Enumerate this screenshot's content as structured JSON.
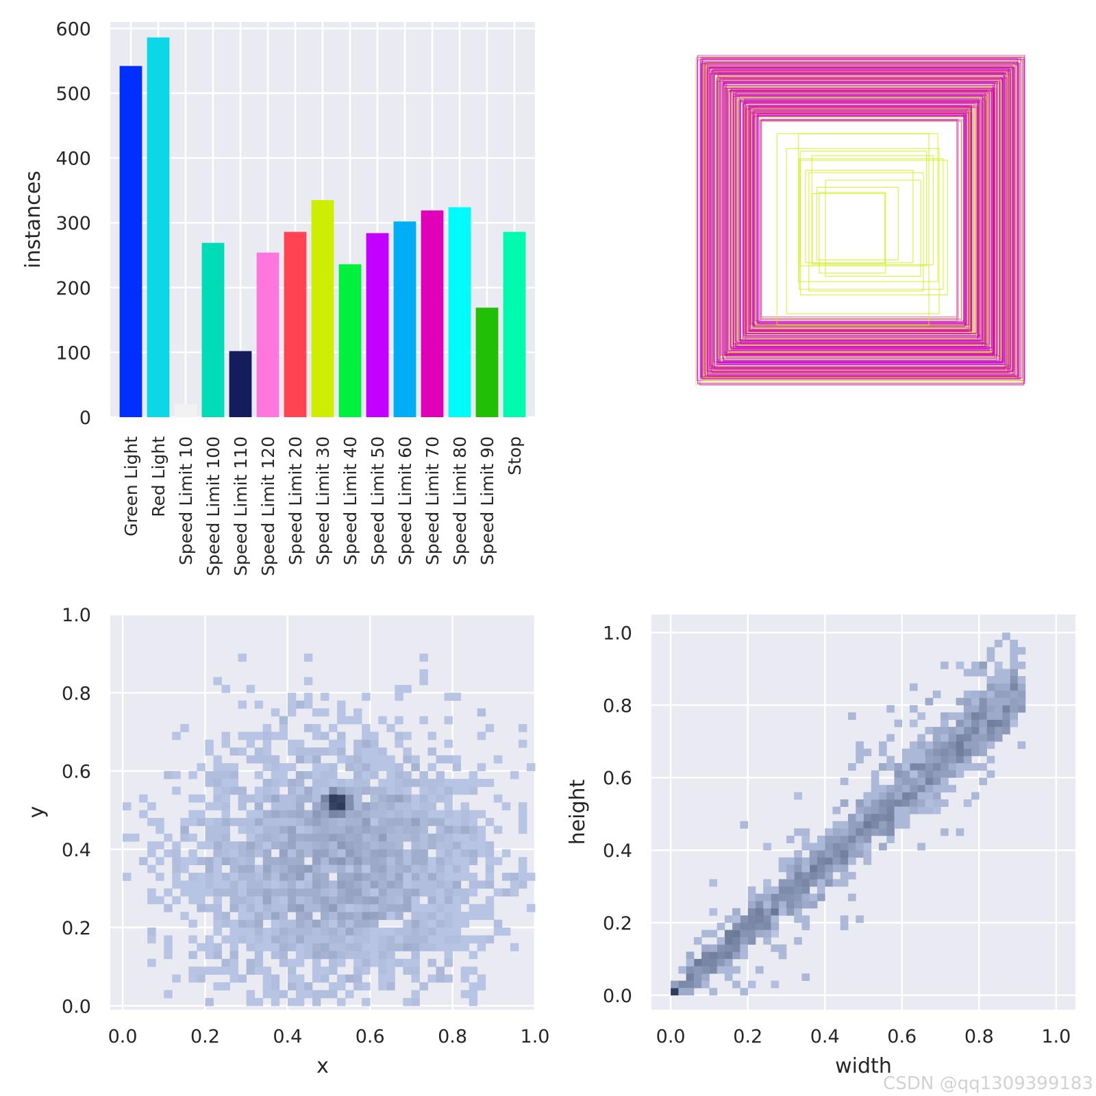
{
  "watermark": "CSDN @qq1309399183",
  "chart_data": [
    {
      "type": "bar",
      "categories": [
        "Green Light",
        "Red Light",
        "Speed Limit 10",
        "Speed Limit 100",
        "Speed Limit 110",
        "Speed Limit 120",
        "Speed Limit 20",
        "Speed Limit 30",
        "Speed Limit 40",
        "Speed Limit 50",
        "Speed Limit 60",
        "Speed Limit 70",
        "Speed Limit 80",
        "Speed Limit 90",
        "Stop"
      ],
      "values": [
        542,
        586,
        20,
        269,
        102,
        254,
        286,
        335,
        236,
        284,
        302,
        319,
        324,
        169,
        286
      ],
      "colors": [
        "#0030ff",
        "#0ad8e6",
        "#f2f2f2",
        "#00dbb8",
        "#141c5e",
        "#ff76dd",
        "#ff4350",
        "#cdee00",
        "#00f03e",
        "#c300ff",
        "#00aef5",
        "#e000b8",
        "#00fbfb",
        "#22bf07",
        "#00fbb0"
      ],
      "ylabel": "instances",
      "xlabel": "",
      "ylim": [
        0,
        610
      ],
      "yticks": [
        0,
        100,
        200,
        300,
        400,
        500,
        600
      ],
      "grid": true
    },
    {
      "type": "other",
      "description_role": "nested bounding boxes",
      "box_colors": [
        "#dd00aa",
        "#cdee00",
        "#ff4350",
        "#c300ff"
      ],
      "widths": [
        0.98,
        0.96,
        0.95,
        0.94,
        0.93,
        0.92,
        0.91,
        0.9,
        0.89,
        0.88,
        0.87,
        0.86,
        0.85,
        0.84,
        0.83,
        0.82,
        0.81,
        0.8,
        0.79,
        0.78,
        0.77,
        0.76,
        0.75,
        0.74,
        0.73,
        0.72,
        0.71,
        0.7,
        0.69,
        0.68,
        0.67,
        0.66,
        0.65,
        0.64,
        0.63,
        0.62,
        0.6
      ],
      "inner_widths": [
        0.5,
        0.48,
        0.45,
        0.42,
        0.4,
        0.38,
        0.36,
        0.34,
        0.3,
        0.28,
        0.25,
        0.22,
        0.2
      ]
    },
    {
      "type": "heatmap",
      "xlabel": "x",
      "ylabel": "y",
      "xlim": [
        -0.03,
        1.0
      ],
      "ylim": [
        -0.01,
        1.0
      ],
      "xticks": [
        "0.0",
        "0.2",
        "0.4",
        "0.6",
        "0.8",
        "1.0"
      ],
      "yticks": [
        "0.0",
        "0.2",
        "0.4",
        "0.6",
        "0.8",
        "1.0"
      ],
      "center": [
        0.52,
        0.52
      ],
      "spread": [
        0.18,
        0.16
      ],
      "grid": true
    },
    {
      "type": "heatmap",
      "xlabel": "width",
      "ylabel": "height",
      "xlim": [
        -0.05,
        1.05
      ],
      "ylim": [
        -0.04,
        1.05
      ],
      "xticks": [
        "0.0",
        "0.2",
        "0.4",
        "0.6",
        "0.8",
        "1.0"
      ],
      "yticks": [
        "0.0",
        "0.2",
        "0.4",
        "0.6",
        "0.8",
        "1.0"
      ],
      "trend": "height ≈ width",
      "grid": true
    }
  ]
}
